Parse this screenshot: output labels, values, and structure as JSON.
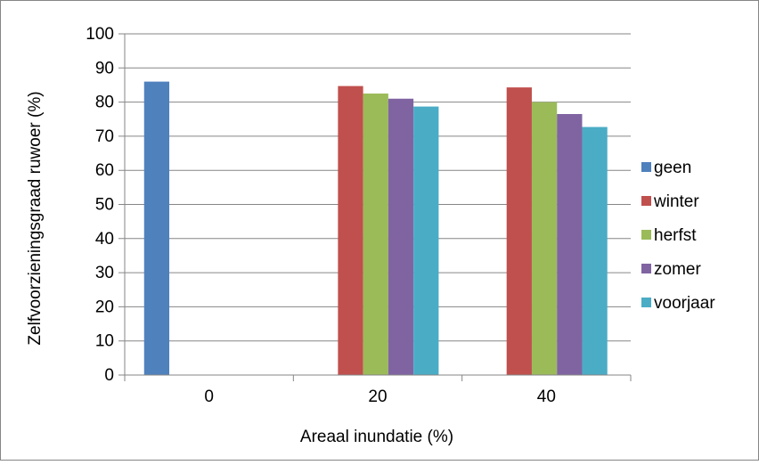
{
  "chart_data": {
    "type": "bar",
    "categories": [
      "0",
      "20",
      "40"
    ],
    "series": [
      {
        "name": "geen",
        "color": "#4F81BD",
        "values": [
          86,
          null,
          null
        ]
      },
      {
        "name": "winter",
        "color": "#C0504D",
        "values": [
          null,
          84.7,
          84.3
        ]
      },
      {
        "name": "herfst",
        "color": "#9BBB59",
        "values": [
          null,
          82.5,
          80
        ]
      },
      {
        "name": "zomer",
        "color": "#8064A2",
        "values": [
          null,
          81,
          76.5
        ]
      },
      {
        "name": "voorjaar",
        "color": "#4BACC6",
        "values": [
          null,
          78.7,
          72.7
        ]
      }
    ],
    "xlabel": "Areaal inundatie (%)",
    "ylabel": "Zelfvoorzieningsgraad  ruwoer (%)",
    "ylim": [
      0,
      100
    ],
    "yticks": [
      "0",
      "10",
      "20",
      "30",
      "40",
      "50",
      "60",
      "70",
      "80",
      "90",
      "100"
    ],
    "grid": true,
    "legend_position": "right",
    "colors": {
      "axis": "#868686",
      "grid": "#868686",
      "border": "#868686"
    }
  }
}
